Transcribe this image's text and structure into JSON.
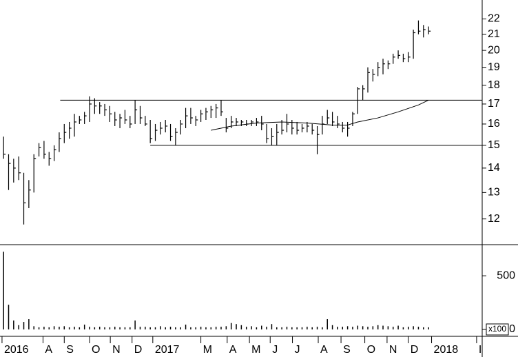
{
  "chart_data": [
    {
      "type": "ohlc",
      "log_scale": true,
      "color": "#000000",
      "ylim": [
        11.1,
        23.3
      ],
      "yticks": [
        12,
        13,
        14,
        15,
        16,
        17,
        18,
        19,
        20,
        21,
        22
      ],
      "xlim": [
        -0.7,
        94.6
      ],
      "xticks": [
        {
          "value": -0.3,
          "label": "2016"
        },
        {
          "value": 7.8,
          "label": "A"
        },
        {
          "value": 12,
          "label": "S"
        },
        {
          "value": 17,
          "label": "O"
        },
        {
          "value": 21.1,
          "label": "N"
        },
        {
          "value": 25.4,
          "label": "D"
        },
        {
          "value": 29.5,
          "label": "2017"
        },
        {
          "value": 39,
          "label": "M"
        },
        {
          "value": 44.2,
          "label": "A"
        },
        {
          "value": 48.6,
          "label": "M"
        },
        {
          "value": 52.7,
          "label": "J"
        },
        {
          "value": 57.1,
          "label": "J"
        },
        {
          "value": 62.2,
          "label": "A"
        },
        {
          "value": 66.7,
          "label": "S"
        },
        {
          "value": 71.4,
          "label": "O"
        },
        {
          "value": 75.8,
          "label": "N"
        },
        {
          "value": 80,
          "label": "D"
        },
        {
          "value": 84.6,
          "label": "2018"
        },
        {
          "value": 93.5,
          "label": "I"
        }
      ],
      "x": [
        0,
        1,
        2,
        3,
        4,
        5,
        6,
        7,
        8,
        9,
        10,
        11,
        12,
        13,
        14,
        15,
        16,
        17,
        18,
        19,
        20,
        21,
        22,
        23,
        24,
        25,
        26,
        27,
        28,
        29,
        30,
        31,
        32,
        33,
        34,
        35,
        36,
        37,
        38,
        39,
        40,
        41,
        42,
        43,
        44,
        45,
        46,
        47,
        48,
        49,
        50,
        51,
        52,
        53,
        54,
        55,
        56,
        57,
        58,
        59,
        60,
        61,
        62,
        63,
        64,
        65,
        66,
        67,
        68,
        69,
        70,
        71,
        72,
        73,
        74,
        75,
        76,
        77,
        78,
        79,
        80,
        81,
        82,
        83,
        84
      ],
      "high": [
        15.4,
        14.6,
        14.4,
        14.5,
        13.8,
        13.5,
        14.6,
        15.1,
        15.2,
        14.7,
        15.0,
        15.6,
        16.0,
        16.1,
        16.5,
        16.4,
        16.6,
        17.4,
        17.3,
        17.1,
        17.0,
        16.9,
        16.6,
        16.5,
        16.7,
        16.4,
        17.2,
        16.9,
        16.4,
        16.2,
        16.0,
        16.1,
        16.2,
        16.0,
        15.8,
        16.2,
        16.8,
        16.8,
        16.4,
        16.7,
        16.8,
        16.9,
        17.0,
        17.2,
        16.3,
        16.4,
        16.3,
        16.2,
        16.2,
        16.2,
        16.3,
        16.4,
        16.0,
        15.8,
        16.0,
        16.2,
        16.5,
        16.2,
        16.1,
        16.0,
        16.1,
        16.0,
        15.9,
        16.4,
        16.7,
        16.6,
        16.4,
        16.1,
        16.1,
        16.6,
        17.9,
        18.0,
        19.0,
        18.9,
        19.3,
        19.5,
        19.4,
        19.8,
        20.0,
        19.8,
        19.9,
        21.3,
        21.9,
        21.6,
        21.5
      ],
      "low": [
        14.4,
        13.1,
        13.4,
        13.5,
        11.8,
        12.4,
        13.0,
        14.5,
        14.4,
        14.1,
        14.3,
        14.7,
        15.1,
        15.3,
        15.4,
        16.0,
        16.0,
        16.1,
        16.5,
        16.5,
        16.4,
        16.1,
        15.9,
        15.8,
        16.0,
        15.8,
        16.0,
        16.0,
        15.9,
        15.1,
        15.2,
        15.5,
        15.6,
        15.2,
        15.0,
        15.5,
        15.8,
        16.0,
        15.9,
        16.1,
        16.2,
        16.3,
        16.3,
        16.4,
        15.6,
        15.8,
        15.9,
        15.9,
        15.9,
        15.9,
        15.9,
        15.7,
        15.1,
        15.0,
        15.0,
        15.5,
        15.6,
        15.5,
        15.5,
        15.6,
        15.6,
        15.5,
        14.6,
        15.5,
        16.0,
        15.9,
        15.8,
        15.6,
        15.4,
        15.9,
        16.5,
        17.2,
        17.6,
        18.2,
        18.5,
        18.6,
        18.9,
        19.2,
        19.5,
        19.3,
        19.3,
        19.5,
        21.0,
        20.8,
        21.0
      ],
      "close": [
        14.6,
        14.2,
        14.0,
        13.8,
        12.6,
        13.1,
        14.4,
        14.9,
        14.6,
        14.4,
        14.8,
        15.3,
        15.6,
        15.8,
        16.1,
        16.2,
        16.4,
        17.0,
        16.9,
        16.9,
        16.7,
        16.5,
        16.2,
        16.3,
        16.2,
        16.0,
        16.7,
        16.3,
        16.0,
        15.3,
        15.7,
        15.8,
        15.9,
        15.4,
        15.6,
        16.0,
        16.4,
        16.3,
        16.2,
        16.5,
        16.6,
        16.7,
        16.8,
        16.6,
        15.8,
        16.1,
        16.1,
        16.1,
        16.0,
        16.1,
        16.1,
        16.0,
        15.3,
        15.4,
        15.6,
        15.7,
        16.0,
        15.8,
        15.7,
        15.8,
        15.9,
        15.7,
        15.5,
        16.0,
        16.3,
        16.1,
        16.0,
        15.8,
        15.8,
        16.5,
        17.8,
        17.8,
        18.7,
        18.6,
        19.0,
        19.2,
        19.2,
        19.6,
        19.7,
        19.5,
        19.6,
        21.1,
        21.2,
        21.3,
        21.2
      ],
      "moving_average": {
        "x": [
          41,
          45,
          50,
          55,
          60,
          65,
          68,
          70,
          74,
          78,
          82,
          84
        ],
        "values": [
          15.7,
          15.9,
          16.05,
          16.1,
          16.05,
          15.95,
          15.95,
          16.1,
          16.3,
          16.6,
          16.95,
          17.2
        ]
      },
      "levels": [
        {
          "value": 17.2,
          "x_start": 11.2
        },
        {
          "value": 15.0,
          "x_start": 29
        }
      ]
    },
    {
      "type": "bar",
      "unit_label": "x100",
      "color": "#000000",
      "ylim": [
        0,
        790
      ],
      "yticks": [
        0,
        500
      ],
      "values": [
        724,
        230,
        83,
        40,
        70,
        96,
        30,
        20,
        25,
        20,
        30,
        25,
        30,
        20,
        25,
        20,
        45,
        25,
        20,
        25,
        20,
        20,
        25,
        20,
        20,
        20,
        83,
        25,
        25,
        20,
        20,
        30,
        20,
        25,
        20,
        20,
        45,
        20,
        20,
        25,
        20,
        20,
        25,
        25,
        30,
        60,
        50,
        40,
        25,
        30,
        20,
        35,
        25,
        50,
        20,
        20,
        25,
        20,
        20,
        20,
        25,
        20,
        25,
        20,
        96,
        40,
        25,
        25,
        30,
        25,
        35,
        30,
        25,
        30,
        40,
        35,
        30,
        25,
        35,
        20,
        25,
        30,
        25,
        20,
        20
      ]
    }
  ]
}
